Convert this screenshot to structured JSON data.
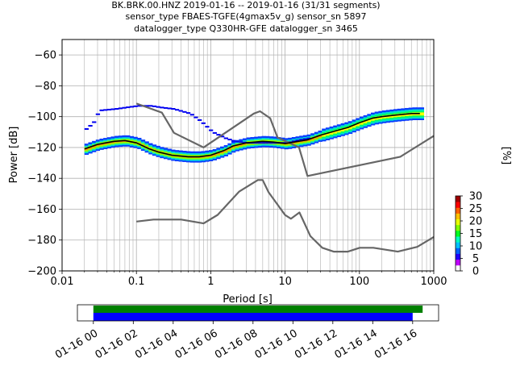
{
  "chart_data": {
    "type": "heatmap",
    "title_lines": [
      "BK.BRK.00.HNZ   2019-01-16 -- 2019-01-16  (31/31 segments)",
      "sensor_type FBAES-TGFE(4gmax5v_g) sensor_sn 5897",
      "datalogger_type Q330HR-GFE datalogger_sn 3465"
    ],
    "xlabel": "Period [s]",
    "ylabel": "Power [dB]",
    "x_scale": "log",
    "xlim": [
      0.01,
      1000
    ],
    "ylim": [
      -200,
      -50
    ],
    "x_ticks": [
      0.01,
      0.1,
      1,
      10,
      100,
      1000
    ],
    "x_tick_labels": [
      "0.01",
      "0.1",
      "1",
      "10",
      "100",
      "1000"
    ],
    "y_ticks": [
      -200,
      -180,
      -160,
      -140,
      -120,
      -100,
      -80,
      -60
    ],
    "y_tick_labels": [
      "−200",
      "−180",
      "−160",
      "−140",
      "−120",
      "−100",
      "−80",
      "−60"
    ],
    "grid": true,
    "colorbar": {
      "label": "[%]",
      "range": [
        0,
        30
      ],
      "ticks": [
        0,
        5,
        10,
        15,
        20,
        25,
        30
      ],
      "tick_labels": [
        "0",
        "5",
        "10",
        "15",
        "20",
        "25",
        "30"
      ]
    },
    "mean_curve": {
      "period": [
        0.02,
        0.03,
        0.05,
        0.07,
        0.1,
        0.15,
        0.2,
        0.3,
        0.5,
        0.7,
        1,
        1.5,
        2,
        3,
        5,
        7,
        10,
        15,
        20,
        30,
        50,
        70,
        100,
        150,
        200,
        300,
        500,
        650
      ],
      "power": [
        -121,
        -118,
        -116,
        -115.5,
        -117,
        -121,
        -123,
        -125,
        -126,
        -126,
        -125,
        -122,
        -119,
        -117,
        -116,
        -116.5,
        -117.5,
        -116,
        -115,
        -112,
        -109,
        -107,
        -104,
        -101,
        -100,
        -99,
        -98,
        -98
      ]
    },
    "upper_spread_curve": {
      "period": [
        0.02,
        0.025,
        0.03,
        0.05,
        0.07,
        0.1,
        0.15,
        0.2,
        0.3,
        0.5,
        0.7,
        1,
        1.5,
        2,
        3,
        5,
        7,
        10,
        15,
        20
      ],
      "power": [
        -108,
        -104,
        -96,
        -95,
        -94,
        -93,
        -93,
        -94,
        -95,
        -98,
        -103,
        -110,
        -114,
        -116,
        -117,
        -117,
        -117,
        -117,
        -115,
        -114
      ]
    },
    "nhnm": {
      "period": [
        0.1,
        0.22,
        0.32,
        0.8,
        3.8,
        4.6,
        6.3,
        7.9,
        15.4,
        20,
        354.8,
        1000
      ],
      "power": [
        -91.5,
        -97.4,
        -110.5,
        -120,
        -98,
        -96.5,
        -101,
        -113.5,
        -120,
        -138.5,
        -126,
        -112.5
      ]
    },
    "nlnm": {
      "period": [
        0.1,
        0.17,
        0.4,
        0.8,
        1.24,
        2.4,
        4.3,
        5,
        6,
        10,
        12,
        15.6,
        21.9,
        31.6,
        45,
        70,
        101,
        154,
        328,
        600,
        1000
      ],
      "power": [
        -168,
        -166.7,
        -166.7,
        -169.2,
        -163.7,
        -148.6,
        -141.1,
        -141.1,
        -149,
        -163.8,
        -166.2,
        -162.1,
        -177.5,
        -185,
        -187.5,
        -187.5,
        -185,
        -185,
        -187.5,
        -184.4,
        -178
      ]
    },
    "coverage": {
      "x_tick_labels": [
        "01-16 00",
        "01-16 02",
        "01-16 04",
        "01-16 06",
        "01-16 08",
        "01-16 10",
        "01-16 12",
        "01-16 14",
        "01-16 16"
      ],
      "hours_start": 0,
      "green_end_hour": 16.5,
      "blue_end_hour": 16.0,
      "axis_start_hour": -0.8,
      "axis_end_hour": 17.3,
      "colors": {
        "green": "#008000",
        "blue": "#0000ff"
      }
    }
  }
}
